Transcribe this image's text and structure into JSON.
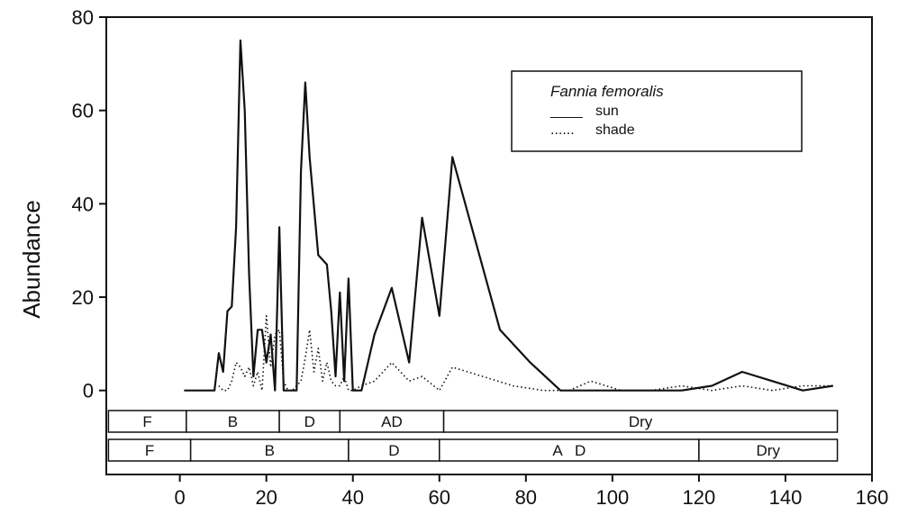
{
  "chart_data": {
    "type": "line",
    "title": "",
    "xlabel": "",
    "ylabel": "Abundance",
    "xlim": [
      -17,
      160
    ],
    "ylim": [
      -18,
      80
    ],
    "xticks": [
      0,
      20,
      40,
      60,
      80,
      100,
      120,
      140,
      160
    ],
    "yticks": [
      0,
      20,
      40,
      60,
      80
    ],
    "legend": {
      "title": "Fannia femoralis",
      "placement": "top-right",
      "entries": [
        {
          "sample": "____",
          "label": "sun"
        },
        {
          "sample": "......",
          "label": "shade"
        }
      ]
    },
    "series": [
      {
        "name": "sun",
        "style": "solid",
        "color": "#111111",
        "x": [
          1,
          8,
          9,
          10,
          11,
          12,
          13,
          14,
          15,
          16,
          17,
          18,
          19,
          20,
          21,
          22,
          23,
          24,
          25,
          26,
          27,
          28,
          29,
          30,
          32,
          34,
          35,
          36,
          37,
          38,
          39,
          40,
          42,
          45,
          49,
          53,
          56,
          60,
          63,
          74,
          81,
          88,
          95,
          102,
          109,
          116,
          123,
          130,
          137,
          144,
          151
        ],
        "y": [
          0,
          0,
          8,
          4,
          17,
          18,
          35,
          75,
          60,
          25,
          3,
          13,
          13,
          6,
          12,
          0,
          35,
          0,
          0,
          0,
          0,
          47,
          66,
          50,
          29,
          27,
          17,
          3,
          21,
          2,
          24,
          0,
          0,
          12,
          22,
          6,
          37,
          16,
          50,
          13,
          6,
          0,
          0,
          0,
          0,
          0,
          1,
          4,
          2,
          0,
          1
        ]
      },
      {
        "name": "shade",
        "style": "dotted",
        "color": "#111111",
        "x": [
          9,
          10,
          11,
          12,
          13,
          14,
          15,
          16,
          17,
          18,
          19,
          20,
          21,
          22,
          23,
          24,
          25,
          26,
          27,
          28,
          29,
          30,
          31,
          32,
          33,
          34,
          35,
          36,
          37,
          38,
          39,
          40,
          42,
          45,
          49,
          53,
          56,
          60,
          63,
          70,
          77,
          84,
          90,
          95,
          102,
          109,
          116,
          123,
          130,
          137,
          144,
          151
        ],
        "y": [
          1,
          0,
          0,
          2,
          6,
          5,
          3,
          5,
          1,
          4,
          0,
          16,
          5,
          12,
          13,
          2,
          0,
          0,
          1,
          2,
          7,
          13,
          4,
          9,
          2,
          6,
          2,
          1,
          1,
          3,
          0,
          0,
          1,
          2,
          6,
          2,
          3,
          0,
          5,
          3,
          1,
          0,
          0,
          2,
          0,
          0,
          1,
          0,
          1,
          0,
          1,
          1
        ]
      }
    ],
    "stage_bars": [
      {
        "segments": [
          {
            "label": "F",
            "start": -16.5,
            "end": 1.5
          },
          {
            "label": "B",
            "start": 1.5,
            "end": 23
          },
          {
            "label": "D",
            "start": 23,
            "end": 37
          },
          {
            "label": "AD",
            "start": 37,
            "end": 61
          },
          {
            "label": "Dry",
            "start": 61,
            "end": 152
          }
        ]
      },
      {
        "segments": [
          {
            "label": "F",
            "start": -16.5,
            "end": 2.5
          },
          {
            "label": "B",
            "start": 2.5,
            "end": 39
          },
          {
            "label": "D",
            "start": 39,
            "end": 60
          },
          {
            "label": "A   D",
            "start": 60,
            "end": 120
          },
          {
            "label": "Dry",
            "start": 120,
            "end": 152
          }
        ]
      }
    ]
  }
}
